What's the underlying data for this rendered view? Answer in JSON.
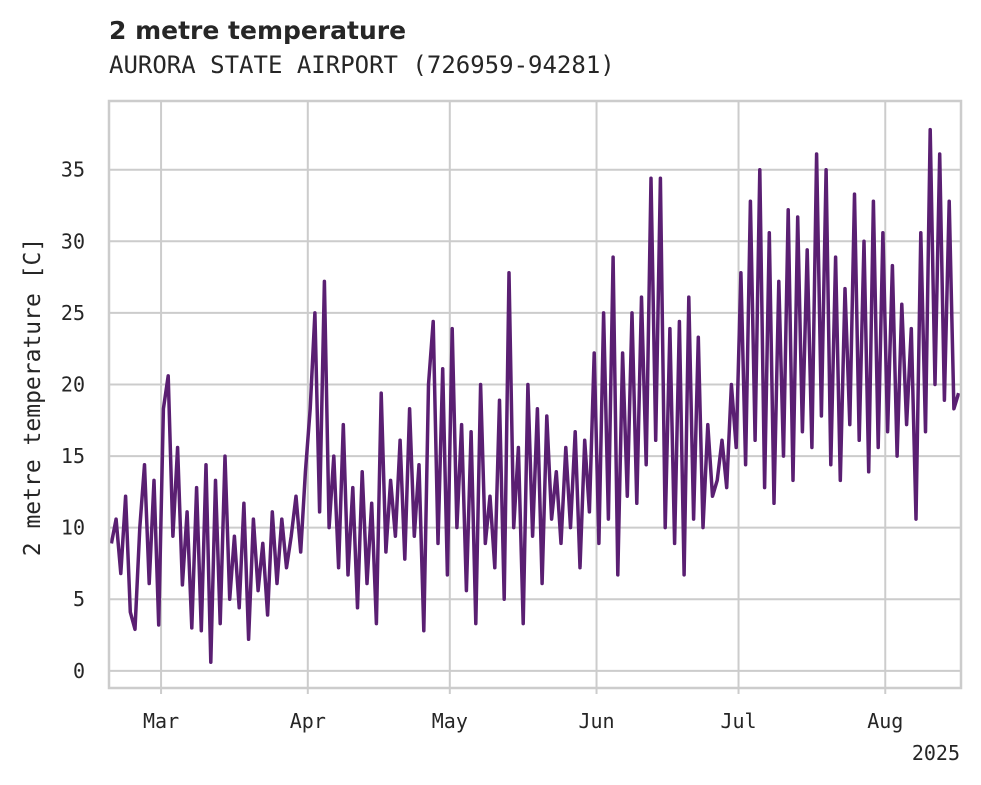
{
  "chart_data": {
    "type": "line",
    "title": "2 metre temperature",
    "subtitle": "AURORA STATE AIRPORT (726959-94281)",
    "xlabel": "",
    "ylabel": "2 metre temperature [C]",
    "year_label": "2025",
    "x_range": [
      "2025-02-18",
      "2025-08-16"
    ],
    "ylim": [
      -1.2,
      39.8
    ],
    "y_ticks": [
      0,
      5,
      10,
      15,
      20,
      25,
      30,
      35
    ],
    "x_ticks": [
      {
        "date": "2025-03-01",
        "label": "Mar"
      },
      {
        "date": "2025-04-01",
        "label": "Apr"
      },
      {
        "date": "2025-05-01",
        "label": "May"
      },
      {
        "date": "2025-06-01",
        "label": "Jun"
      },
      {
        "date": "2025-07-01",
        "label": "Jul"
      },
      {
        "date": "2025-08-01",
        "label": "Aug"
      }
    ],
    "grid": true,
    "series": [
      {
        "color": "#5a1f72",
        "points": [
          [
            "2025-02-18",
            8.9
          ],
          [
            "2025-02-19",
            10.6
          ],
          [
            "2025-02-20",
            6.8
          ],
          [
            "2025-02-21",
            12.2
          ],
          [
            "2025-02-22",
            4.1
          ],
          [
            "2025-02-23",
            2.9
          ],
          [
            "2025-02-24",
            10.0
          ],
          [
            "2025-02-25",
            14.4
          ],
          [
            "2025-02-26",
            6.1
          ],
          [
            "2025-02-27",
            13.3
          ],
          [
            "2025-02-28",
            3.2
          ],
          [
            "2025-03-01",
            18.3
          ],
          [
            "2025-03-02",
            20.6
          ],
          [
            "2025-03-03",
            9.4
          ],
          [
            "2025-03-04",
            15.6
          ],
          [
            "2025-03-05",
            6.0
          ],
          [
            "2025-03-06",
            11.1
          ],
          [
            "2025-03-07",
            3.0
          ],
          [
            "2025-03-08",
            12.8
          ],
          [
            "2025-03-09",
            2.8
          ],
          [
            "2025-03-10",
            14.4
          ],
          [
            "2025-03-11",
            0.6
          ],
          [
            "2025-03-12",
            13.3
          ],
          [
            "2025-03-13",
            3.3
          ],
          [
            "2025-03-14",
            15.0
          ],
          [
            "2025-03-15",
            5.0
          ],
          [
            "2025-03-16",
            9.4
          ],
          [
            "2025-03-17",
            4.4
          ],
          [
            "2025-03-18",
            11.7
          ],
          [
            "2025-03-19",
            2.2
          ],
          [
            "2025-03-20",
            10.6
          ],
          [
            "2025-03-21",
            5.6
          ],
          [
            "2025-03-22",
            8.9
          ],
          [
            "2025-03-23",
            3.9
          ],
          [
            "2025-03-24",
            11.1
          ],
          [
            "2025-03-25",
            6.1
          ],
          [
            "2025-03-26",
            10.6
          ],
          [
            "2025-03-27",
            7.2
          ],
          [
            "2025-03-28",
            9.4
          ],
          [
            "2025-03-29",
            12.2
          ],
          [
            "2025-03-30",
            8.3
          ],
          [
            "2025-03-31",
            13.9
          ],
          [
            "2025-04-01",
            18.3
          ],
          [
            "2025-04-02",
            25.0
          ],
          [
            "2025-04-03",
            11.1
          ],
          [
            "2025-04-04",
            27.2
          ],
          [
            "2025-04-05",
            10.0
          ],
          [
            "2025-04-06",
            15.0
          ],
          [
            "2025-04-07",
            7.2
          ],
          [
            "2025-04-08",
            17.2
          ],
          [
            "2025-04-09",
            6.7
          ],
          [
            "2025-04-10",
            12.8
          ],
          [
            "2025-04-11",
            4.4
          ],
          [
            "2025-04-12",
            13.9
          ],
          [
            "2025-04-13",
            6.1
          ],
          [
            "2025-04-14",
            11.7
          ],
          [
            "2025-04-15",
            3.3
          ],
          [
            "2025-04-16",
            19.4
          ],
          [
            "2025-04-17",
            8.3
          ],
          [
            "2025-04-18",
            13.3
          ],
          [
            "2025-04-19",
            9.4
          ],
          [
            "2025-04-20",
            16.1
          ],
          [
            "2025-04-21",
            7.8
          ],
          [
            "2025-04-22",
            18.3
          ],
          [
            "2025-04-23",
            9.4
          ],
          [
            "2025-04-24",
            14.4
          ],
          [
            "2025-04-25",
            2.8
          ],
          [
            "2025-04-26",
            20.0
          ],
          [
            "2025-04-27",
            24.4
          ],
          [
            "2025-04-28",
            8.9
          ],
          [
            "2025-04-29",
            21.1
          ],
          [
            "2025-04-30",
            6.7
          ],
          [
            "2025-05-01",
            23.9
          ],
          [
            "2025-05-02",
            10.0
          ],
          [
            "2025-05-03",
            17.2
          ],
          [
            "2025-05-04",
            5.6
          ],
          [
            "2025-05-05",
            16.7
          ],
          [
            "2025-05-06",
            3.3
          ],
          [
            "2025-05-07",
            20.0
          ],
          [
            "2025-05-08",
            8.9
          ],
          [
            "2025-05-09",
            12.2
          ],
          [
            "2025-05-10",
            7.2
          ],
          [
            "2025-05-11",
            18.9
          ],
          [
            "2025-05-12",
            5.0
          ],
          [
            "2025-05-13",
            27.8
          ],
          [
            "2025-05-14",
            10.0
          ],
          [
            "2025-05-15",
            15.6
          ],
          [
            "2025-05-16",
            3.3
          ],
          [
            "2025-05-17",
            20.0
          ],
          [
            "2025-05-18",
            9.4
          ],
          [
            "2025-05-19",
            18.3
          ],
          [
            "2025-05-20",
            6.1
          ],
          [
            "2025-05-21",
            17.8
          ],
          [
            "2025-05-22",
            10.6
          ],
          [
            "2025-05-23",
            13.9
          ],
          [
            "2025-05-24",
            8.9
          ],
          [
            "2025-05-25",
            15.6
          ],
          [
            "2025-05-26",
            10.0
          ],
          [
            "2025-05-27",
            16.7
          ],
          [
            "2025-05-28",
            7.2
          ],
          [
            "2025-05-29",
            16.1
          ],
          [
            "2025-05-30",
            11.1
          ],
          [
            "2025-05-31",
            22.2
          ],
          [
            "2025-06-01",
            8.9
          ],
          [
            "2025-06-02",
            25.0
          ],
          [
            "2025-06-03",
            10.6
          ],
          [
            "2025-06-04",
            28.9
          ],
          [
            "2025-06-05",
            6.7
          ],
          [
            "2025-06-06",
            22.2
          ],
          [
            "2025-06-07",
            12.2
          ],
          [
            "2025-06-08",
            25.0
          ],
          [
            "2025-06-09",
            11.7
          ],
          [
            "2025-06-10",
            26.1
          ],
          [
            "2025-06-11",
            14.4
          ],
          [
            "2025-06-12",
            34.4
          ],
          [
            "2025-06-13",
            16.1
          ],
          [
            "2025-06-14",
            34.4
          ],
          [
            "2025-06-15",
            10.0
          ],
          [
            "2025-06-16",
            23.9
          ],
          [
            "2025-06-17",
            8.9
          ],
          [
            "2025-06-18",
            24.4
          ],
          [
            "2025-06-19",
            6.7
          ],
          [
            "2025-06-20",
            26.1
          ],
          [
            "2025-06-21",
            10.6
          ],
          [
            "2025-06-22",
            23.3
          ],
          [
            "2025-06-23",
            10.0
          ],
          [
            "2025-06-24",
            17.2
          ],
          [
            "2025-06-25",
            12.2
          ],
          [
            "2025-06-26",
            13.3
          ],
          [
            "2025-06-27",
            16.1
          ],
          [
            "2025-06-28",
            12.8
          ],
          [
            "2025-06-29",
            20.0
          ],
          [
            "2025-06-30",
            15.6
          ],
          [
            "2025-07-01",
            27.8
          ],
          [
            "2025-07-02",
            14.4
          ],
          [
            "2025-07-03",
            32.8
          ],
          [
            "2025-07-04",
            16.1
          ],
          [
            "2025-07-05",
            35.0
          ],
          [
            "2025-07-06",
            12.8
          ],
          [
            "2025-07-07",
            30.6
          ],
          [
            "2025-07-08",
            11.7
          ],
          [
            "2025-07-09",
            27.2
          ],
          [
            "2025-07-10",
            15.0
          ],
          [
            "2025-07-11",
            32.2
          ],
          [
            "2025-07-12",
            13.3
          ],
          [
            "2025-07-13",
            31.7
          ],
          [
            "2025-07-14",
            16.7
          ],
          [
            "2025-07-15",
            29.4
          ],
          [
            "2025-07-16",
            15.6
          ],
          [
            "2025-07-17",
            36.1
          ],
          [
            "2025-07-18",
            17.8
          ],
          [
            "2025-07-19",
            35.0
          ],
          [
            "2025-07-20",
            14.4
          ],
          [
            "2025-07-21",
            28.9
          ],
          [
            "2025-07-22",
            13.3
          ],
          [
            "2025-07-23",
            26.7
          ],
          [
            "2025-07-24",
            17.2
          ],
          [
            "2025-07-25",
            33.3
          ],
          [
            "2025-07-26",
            16.1
          ],
          [
            "2025-07-27",
            30.0
          ],
          [
            "2025-07-28",
            13.9
          ],
          [
            "2025-07-29",
            32.8
          ],
          [
            "2025-07-30",
            15.6
          ],
          [
            "2025-07-31",
            30.6
          ],
          [
            "2025-08-01",
            16.7
          ],
          [
            "2025-08-02",
            28.3
          ],
          [
            "2025-08-03",
            15.0
          ],
          [
            "2025-08-04",
            25.6
          ],
          [
            "2025-08-05",
            17.2
          ],
          [
            "2025-08-06",
            23.9
          ],
          [
            "2025-08-07",
            10.6
          ],
          [
            "2025-08-08",
            30.6
          ],
          [
            "2025-08-09",
            16.7
          ],
          [
            "2025-08-10",
            37.8
          ],
          [
            "2025-08-11",
            20.0
          ],
          [
            "2025-08-12",
            36.1
          ],
          [
            "2025-08-13",
            18.9
          ],
          [
            "2025-08-14",
            32.8
          ],
          [
            "2025-08-15",
            18.3
          ],
          [
            "2025-08-16",
            19.4
          ]
        ]
      }
    ]
  }
}
